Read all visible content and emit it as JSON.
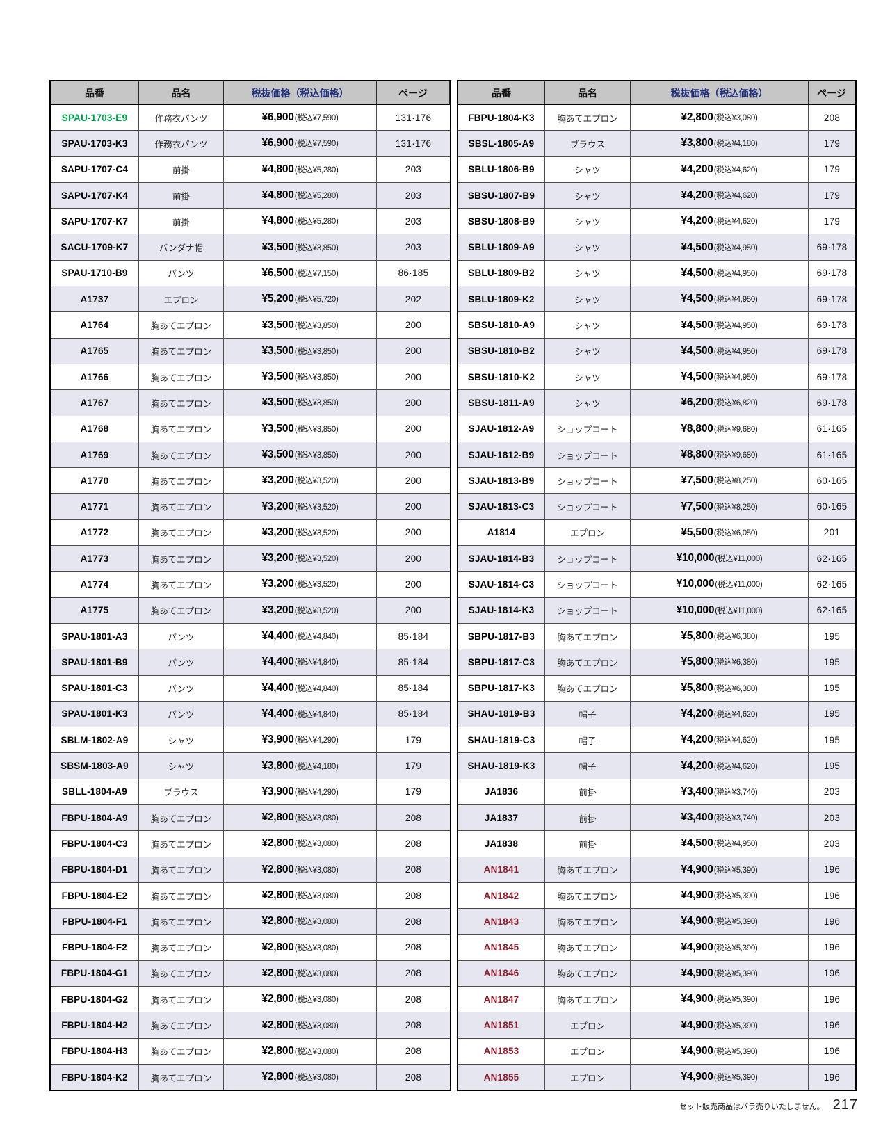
{
  "columns": [
    "品番",
    "品名",
    "税抜価格（税込価格）",
    "ページ"
  ],
  "colors": {
    "header_bg": "#c6c6c6",
    "header_price_text": "#20307c",
    "row_alt_bg": "#e6e6f1",
    "green": "#009e4d",
    "maroon": "#8b1e2d"
  },
  "footer": {
    "note": "セット販売商品はバラ売りいたしません。",
    "page_number": "217"
  },
  "tables": [
    {
      "rows": [
        {
          "code": "SPAU-1703-E9",
          "code_color": "green",
          "name": "作務衣パンツ",
          "price": "¥6,900",
          "tax": "(税込¥7,590)",
          "page": "131·176"
        },
        {
          "code": "SPAU-1703-K3",
          "name": "作務衣パンツ",
          "price": "¥6,900",
          "tax": "(税込¥7,590)",
          "page": "131·176"
        },
        {
          "code": "SAPU-1707-C4",
          "name": "前掛",
          "price": "¥4,800",
          "tax": "(税込¥5,280)",
          "page": "203"
        },
        {
          "code": "SAPU-1707-K4",
          "name": "前掛",
          "price": "¥4,800",
          "tax": "(税込¥5,280)",
          "page": "203"
        },
        {
          "code": "SAPU-1707-K7",
          "name": "前掛",
          "price": "¥4,800",
          "tax": "(税込¥5,280)",
          "page": "203"
        },
        {
          "code": "SACU-1709-K7",
          "name": "バンダナ帽",
          "price": "¥3,500",
          "tax": "(税込¥3,850)",
          "page": "203"
        },
        {
          "code": "SPAU-1710-B9",
          "name": "パンツ",
          "price": "¥6,500",
          "tax": "(税込¥7,150)",
          "page": "86·185"
        },
        {
          "code": "A1737",
          "name": "エプロン",
          "price": "¥5,200",
          "tax": "(税込¥5,720)",
          "page": "202"
        },
        {
          "code": "A1764",
          "name": "胸あてエプロン",
          "price": "¥3,500",
          "tax": "(税込¥3,850)",
          "page": "200"
        },
        {
          "code": "A1765",
          "name": "胸あてエプロン",
          "price": "¥3,500",
          "tax": "(税込¥3,850)",
          "page": "200"
        },
        {
          "code": "A1766",
          "name": "胸あてエプロン",
          "price": "¥3,500",
          "tax": "(税込¥3,850)",
          "page": "200"
        },
        {
          "code": "A1767",
          "name": "胸あてエプロン",
          "price": "¥3,500",
          "tax": "(税込¥3,850)",
          "page": "200"
        },
        {
          "code": "A1768",
          "name": "胸あてエプロン",
          "price": "¥3,500",
          "tax": "(税込¥3,850)",
          "page": "200"
        },
        {
          "code": "A1769",
          "name": "胸あてエプロン",
          "price": "¥3,500",
          "tax": "(税込¥3,850)",
          "page": "200"
        },
        {
          "code": "A1770",
          "name": "胸あてエプロン",
          "price": "¥3,200",
          "tax": "(税込¥3,520)",
          "page": "200"
        },
        {
          "code": "A1771",
          "name": "胸あてエプロン",
          "price": "¥3,200",
          "tax": "(税込¥3,520)",
          "page": "200"
        },
        {
          "code": "A1772",
          "name": "胸あてエプロン",
          "price": "¥3,200",
          "tax": "(税込¥3,520)",
          "page": "200"
        },
        {
          "code": "A1773",
          "name": "胸あてエプロン",
          "price": "¥3,200",
          "tax": "(税込¥3,520)",
          "page": "200"
        },
        {
          "code": "A1774",
          "name": "胸あてエプロン",
          "price": "¥3,200",
          "tax": "(税込¥3,520)",
          "page": "200"
        },
        {
          "code": "A1775",
          "name": "胸あてエプロン",
          "price": "¥3,200",
          "tax": "(税込¥3,520)",
          "page": "200"
        },
        {
          "code": "SPAU-1801-A3",
          "name": "パンツ",
          "price": "¥4,400",
          "tax": "(税込¥4,840)",
          "page": "85·184"
        },
        {
          "code": "SPAU-1801-B9",
          "name": "パンツ",
          "price": "¥4,400",
          "tax": "(税込¥4,840)",
          "page": "85·184"
        },
        {
          "code": "SPAU-1801-C3",
          "name": "パンツ",
          "price": "¥4,400",
          "tax": "(税込¥4,840)",
          "page": "85·184"
        },
        {
          "code": "SPAU-1801-K3",
          "name": "パンツ",
          "price": "¥4,400",
          "tax": "(税込¥4,840)",
          "page": "85·184"
        },
        {
          "code": "SBLM-1802-A9",
          "name": "シャツ",
          "price": "¥3,900",
          "tax": "(税込¥4,290)",
          "page": "179"
        },
        {
          "code": "SBSM-1803-A9",
          "name": "シャツ",
          "price": "¥3,800",
          "tax": "(税込¥4,180)",
          "page": "179"
        },
        {
          "code": "SBLL-1804-A9",
          "name": "ブラウス",
          "price": "¥3,900",
          "tax": "(税込¥4,290)",
          "page": "179"
        },
        {
          "code": "FBPU-1804-A9",
          "name": "胸あてエプロン",
          "price": "¥2,800",
          "tax": "(税込¥3,080)",
          "page": "208"
        },
        {
          "code": "FBPU-1804-C3",
          "name": "胸あてエプロン",
          "price": "¥2,800",
          "tax": "(税込¥3,080)",
          "page": "208"
        },
        {
          "code": "FBPU-1804-D1",
          "name": "胸あてエプロン",
          "price": "¥2,800",
          "tax": "(税込¥3,080)",
          "page": "208"
        },
        {
          "code": "FBPU-1804-E2",
          "name": "胸あてエプロン",
          "price": "¥2,800",
          "tax": "(税込¥3,080)",
          "page": "208"
        },
        {
          "code": "FBPU-1804-F1",
          "name": "胸あてエプロン",
          "price": "¥2,800",
          "tax": "(税込¥3,080)",
          "page": "208"
        },
        {
          "code": "FBPU-1804-F2",
          "name": "胸あてエプロン",
          "price": "¥2,800",
          "tax": "(税込¥3,080)",
          "page": "208"
        },
        {
          "code": "FBPU-1804-G1",
          "name": "胸あてエプロン",
          "price": "¥2,800",
          "tax": "(税込¥3,080)",
          "page": "208"
        },
        {
          "code": "FBPU-1804-G2",
          "name": "胸あてエプロン",
          "price": "¥2,800",
          "tax": "(税込¥3,080)",
          "page": "208"
        },
        {
          "code": "FBPU-1804-H2",
          "name": "胸あてエプロン",
          "price": "¥2,800",
          "tax": "(税込¥3,080)",
          "page": "208"
        },
        {
          "code": "FBPU-1804-H3",
          "name": "胸あてエプロン",
          "price": "¥2,800",
          "tax": "(税込¥3,080)",
          "page": "208"
        },
        {
          "code": "FBPU-1804-K2",
          "name": "胸あてエプロン",
          "price": "¥2,800",
          "tax": "(税込¥3,080)",
          "page": "208"
        }
      ]
    },
    {
      "rows": [
        {
          "code": "FBPU-1804-K3",
          "name": "胸あてエプロン",
          "price": "¥2,800",
          "tax": "(税込¥3,080)",
          "page": "208"
        },
        {
          "code": "SBSL-1805-A9",
          "name": "ブラウス",
          "price": "¥3,800",
          "tax": "(税込¥4,180)",
          "page": "179"
        },
        {
          "code": "SBLU-1806-B9",
          "name": "シャツ",
          "price": "¥4,200",
          "tax": "(税込¥4,620)",
          "page": "179"
        },
        {
          "code": "SBSU-1807-B9",
          "name": "シャツ",
          "price": "¥4,200",
          "tax": "(税込¥4,620)",
          "page": "179"
        },
        {
          "code": "SBSU-1808-B9",
          "name": "シャツ",
          "price": "¥4,200",
          "tax": "(税込¥4,620)",
          "page": "179"
        },
        {
          "code": "SBLU-1809-A9",
          "name": "シャツ",
          "price": "¥4,500",
          "tax": "(税込¥4,950)",
          "page": "69·178"
        },
        {
          "code": "SBLU-1809-B2",
          "name": "シャツ",
          "price": "¥4,500",
          "tax": "(税込¥4,950)",
          "page": "69·178"
        },
        {
          "code": "SBLU-1809-K2",
          "name": "シャツ",
          "price": "¥4,500",
          "tax": "(税込¥4,950)",
          "page": "69·178"
        },
        {
          "code": "SBSU-1810-A9",
          "name": "シャツ",
          "price": "¥4,500",
          "tax": "(税込¥4,950)",
          "page": "69·178"
        },
        {
          "code": "SBSU-1810-B2",
          "name": "シャツ",
          "price": "¥4,500",
          "tax": "(税込¥4,950)",
          "page": "69·178"
        },
        {
          "code": "SBSU-1810-K2",
          "name": "シャツ",
          "price": "¥4,500",
          "tax": "(税込¥4,950)",
          "page": "69·178"
        },
        {
          "code": "SBSU-1811-A9",
          "name": "シャツ",
          "price": "¥6,200",
          "tax": "(税込¥6,820)",
          "page": "69·178"
        },
        {
          "code": "SJAU-1812-A9",
          "name": "ショップコート",
          "price": "¥8,800",
          "tax": "(税込¥9,680)",
          "page": "61·165"
        },
        {
          "code": "SJAU-1812-B9",
          "name": "ショップコート",
          "price": "¥8,800",
          "tax": "(税込¥9,680)",
          "page": "61·165"
        },
        {
          "code": "SJAU-1813-B9",
          "name": "ショップコート",
          "price": "¥7,500",
          "tax": "(税込¥8,250)",
          "page": "60·165"
        },
        {
          "code": "SJAU-1813-C3",
          "name": "ショップコート",
          "price": "¥7,500",
          "tax": "(税込¥8,250)",
          "page": "60·165"
        },
        {
          "code": "A1814",
          "name": "エプロン",
          "price": "¥5,500",
          "tax": "(税込¥6,050)",
          "page": "201"
        },
        {
          "code": "SJAU-1814-B3",
          "name": "ショップコート",
          "price": "¥10,000",
          "tax": "(税込¥11,000)",
          "page": "62·165"
        },
        {
          "code": "SJAU-1814-C3",
          "name": "ショップコート",
          "price": "¥10,000",
          "tax": "(税込¥11,000)",
          "page": "62·165"
        },
        {
          "code": "SJAU-1814-K3",
          "name": "ショップコート",
          "price": "¥10,000",
          "tax": "(税込¥11,000)",
          "page": "62·165"
        },
        {
          "code": "SBPU-1817-B3",
          "name": "胸あてエプロン",
          "price": "¥5,800",
          "tax": "(税込¥6,380)",
          "page": "195"
        },
        {
          "code": "SBPU-1817-C3",
          "name": "胸あてエプロン",
          "price": "¥5,800",
          "tax": "(税込¥6,380)",
          "page": "195"
        },
        {
          "code": "SBPU-1817-K3",
          "name": "胸あてエプロン",
          "price": "¥5,800",
          "tax": "(税込¥6,380)",
          "page": "195"
        },
        {
          "code": "SHAU-1819-B3",
          "name": "帽子",
          "price": "¥4,200",
          "tax": "(税込¥4,620)",
          "page": "195"
        },
        {
          "code": "SHAU-1819-C3",
          "name": "帽子",
          "price": "¥4,200",
          "tax": "(税込¥4,620)",
          "page": "195"
        },
        {
          "code": "SHAU-1819-K3",
          "name": "帽子",
          "price": "¥4,200",
          "tax": "(税込¥4,620)",
          "page": "195"
        },
        {
          "code": "JA1836",
          "name": "前掛",
          "price": "¥3,400",
          "tax": "(税込¥3,740)",
          "page": "203"
        },
        {
          "code": "JA1837",
          "name": "前掛",
          "price": "¥3,400",
          "tax": "(税込¥3,740)",
          "page": "203"
        },
        {
          "code": "JA1838",
          "name": "前掛",
          "price": "¥4,500",
          "tax": "(税込¥4,950)",
          "page": "203"
        },
        {
          "code": "AN1841",
          "code_color": "maroon",
          "name": "胸あてエプロン",
          "price": "¥4,900",
          "tax": "(税込¥5,390)",
          "page": "196"
        },
        {
          "code": "AN1842",
          "code_color": "maroon",
          "name": "胸あてエプロン",
          "price": "¥4,900",
          "tax": "(税込¥5,390)",
          "page": "196"
        },
        {
          "code": "AN1843",
          "code_color": "maroon",
          "name": "胸あてエプロン",
          "price": "¥4,900",
          "tax": "(税込¥5,390)",
          "page": "196"
        },
        {
          "code": "AN1845",
          "code_color": "maroon",
          "name": "胸あてエプロン",
          "price": "¥4,900",
          "tax": "(税込¥5,390)",
          "page": "196"
        },
        {
          "code": "AN1846",
          "code_color": "maroon",
          "name": "胸あてエプロン",
          "price": "¥4,900",
          "tax": "(税込¥5,390)",
          "page": "196"
        },
        {
          "code": "AN1847",
          "code_color": "maroon",
          "name": "胸あてエプロン",
          "price": "¥4,900",
          "tax": "(税込¥5,390)",
          "page": "196"
        },
        {
          "code": "AN1851",
          "code_color": "maroon",
          "name": "エプロン",
          "price": "¥4,900",
          "tax": "(税込¥5,390)",
          "page": "196"
        },
        {
          "code": "AN1853",
          "code_color": "maroon",
          "name": "エプロン",
          "price": "¥4,900",
          "tax": "(税込¥5,390)",
          "page": "196"
        },
        {
          "code": "AN1855",
          "code_color": "maroon",
          "name": "エプロン",
          "price": "¥4,900",
          "tax": "(税込¥5,390)",
          "page": "196"
        }
      ]
    }
  ]
}
